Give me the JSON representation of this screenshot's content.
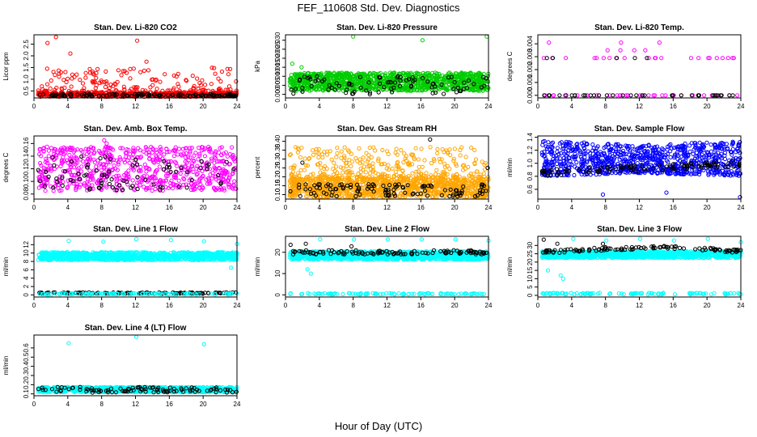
{
  "figure": {
    "title": "FEF_110608  Std. Dev. Diagnostics",
    "xlabel": "Hour of Day (UTC)"
  },
  "chart_data": [
    {
      "type": "scatter",
      "title": "Stan. Dev. Li-820 CO2",
      "ylabel": "Licor ppm",
      "xlim": [
        0,
        24
      ],
      "ylim": [
        0.2,
        2.9
      ],
      "x_ticks": [
        "0",
        "4",
        "8",
        "12",
        "16",
        "20",
        "24"
      ],
      "y_ticks": [
        "0.5",
        "1.0",
        "1.5",
        "2.0",
        "2.5"
      ],
      "y_tick_values": [
        0.5,
        1.0,
        1.5,
        2.0,
        2.5
      ],
      "series": [
        {
          "color": "#ff0000",
          "x_range": [
            0.5,
            24
          ],
          "points": 700,
          "y_base": [
            0.25,
            0.45
          ],
          "y_spread": [
            0.5,
            1.5
          ],
          "outliers": [
            [
              1.6,
              2.55
            ],
            [
              2.6,
              2.8
            ],
            [
              12.2,
              2.65
            ],
            [
              4.3,
              2.1
            ],
            [
              13.3,
              1.75
            ]
          ]
        },
        {
          "color": "#000000",
          "x_range": [
            0.5,
            24
          ],
          "points": 120,
          "y_base": [
            0.27,
            0.36
          ]
        }
      ]
    },
    {
      "type": "scatter",
      "title": "Stan. Dev. Li-820 Pressure",
      "ylabel": "kPa",
      "xlim": [
        0,
        24
      ],
      "ylim": [
        -0.002,
        0.033
      ],
      "x_ticks": [
        "0",
        "4",
        "8",
        "12",
        "16",
        "20",
        "24"
      ],
      "y_ticks": [
        "0.000",
        "0.005",
        "0.010",
        "0.015",
        "0.020",
        "0.025",
        "0.030"
      ],
      "y_tick_values": [
        0.0,
        0.005,
        0.01,
        0.015,
        0.02,
        0.025,
        0.03
      ],
      "series": [
        {
          "color": "#00cc00",
          "x_range": [
            0.5,
            24
          ],
          "points": 1100,
          "y_base": [
            0.002,
            0.012
          ],
          "outliers": [
            [
              8,
              0.032
            ],
            [
              16.2,
              0.03
            ],
            [
              23.8,
              0.032
            ],
            [
              0.8,
              0.017
            ],
            [
              1.9,
              0.015
            ]
          ]
        },
        {
          "color": "#000000",
          "x_range": [
            0.5,
            24
          ],
          "points": 90,
          "y_base": [
            0.0,
            0.01
          ]
        }
      ]
    },
    {
      "type": "scatter",
      "title": "Stan. Dev. Li-820 Temp.",
      "ylabel": "degrees C",
      "xlim": [
        0,
        24
      ],
      "ylim": [
        -0.0002,
        0.0047
      ],
      "x_ticks": [
        "0",
        "4",
        "8",
        "12",
        "16",
        "20",
        "24"
      ],
      "y_ticks": [
        "0.000",
        "0.001",
        "0.002",
        "0.003",
        "0.004"
      ],
      "y_tick_values": [
        0.0,
        0.001,
        0.002,
        0.003,
        0.004
      ],
      "series": [
        {
          "color": "#ff00ff",
          "x_range": [
            0.5,
            24
          ],
          "points": 60,
          "y_levels": [
            0.0,
            0.0029,
            0.0035,
            0.0041
          ],
          "y_level_weights": [
            0.55,
            0.3,
            0.1,
            0.05
          ]
        },
        {
          "color": "#000000",
          "x_range": [
            0.5,
            24
          ],
          "points": 40,
          "y_levels": [
            0.0,
            0.0029
          ],
          "y_level_weights": [
            0.85,
            0.15
          ]
        }
      ]
    },
    {
      "type": "scatter",
      "title": "Stan. Dev. Amb. Box Temp.",
      "ylabel": "degrees C",
      "xlim": [
        0,
        24
      ],
      "ylim": [
        0.072,
        0.172
      ],
      "x_ticks": [
        "0",
        "4",
        "8",
        "12",
        "16",
        "20",
        "24"
      ],
      "y_ticks": [
        "0.08",
        "0.10",
        "0.12",
        "0.14",
        "0.16"
      ],
      "y_tick_values": [
        0.08,
        0.1,
        0.12,
        0.14,
        0.16
      ],
      "series": [
        {
          "color": "#ff00ff",
          "x_range": [
            0.5,
            24
          ],
          "points": 700,
          "y_base": [
            0.085,
            0.155
          ],
          "outliers": [
            [
              8.3,
              0.165
            ],
            [
              8.6,
              0.16
            ]
          ]
        },
        {
          "color": "#000000",
          "x_range": [
            0.5,
            24
          ],
          "points": 80,
          "y_base": [
            0.085,
            0.14
          ]
        }
      ]
    },
    {
      "type": "scatter",
      "title": "Stan. Dev. Gas Stream RH",
      "ylabel": "percent",
      "xlim": [
        0,
        24
      ],
      "ylim": [
        0.075,
        0.43
      ],
      "x_ticks": [
        "0",
        "4",
        "8",
        "12",
        "16",
        "20",
        "24"
      ],
      "y_ticks": [
        "0.10",
        "0.15",
        "0.20",
        "0.25",
        "0.30",
        "0.35",
        "0.40"
      ],
      "y_tick_values": [
        0.1,
        0.15,
        0.2,
        0.25,
        0.3,
        0.35,
        0.4
      ],
      "series": [
        {
          "color": "#ffa500",
          "x_range": [
            0.5,
            24
          ],
          "points": 1300,
          "y_base": [
            0.085,
            0.2
          ],
          "y_spread": [
            0.2,
            0.37
          ]
        },
        {
          "color": "#000000",
          "x_range": [
            0.5,
            24
          ],
          "points": 110,
          "y_base": [
            0.09,
            0.16
          ],
          "outliers": [
            [
              17.1,
              0.41
            ],
            [
              23.9,
              0.25
            ],
            [
              2,
              0.28
            ]
          ]
        }
      ]
    },
    {
      "type": "scatter",
      "title": "Stan. Dev. Sample Flow",
      "ylabel": "ml/min",
      "xlim": [
        0,
        24
      ],
      "ylim": [
        0.45,
        1.42
      ],
      "x_ticks": [
        "0",
        "4",
        "8",
        "12",
        "16",
        "20",
        "24"
      ],
      "y_ticks": [
        "0.6",
        "0.8",
        "1.0",
        "1.2",
        "1.4"
      ],
      "y_tick_values": [
        0.6,
        0.8,
        1.0,
        1.2,
        1.4
      ],
      "series": [
        {
          "color": "#0000ff",
          "x_range": [
            0.5,
            24
          ],
          "points": 900,
          "y_band": [
            [
              0.5,
              0.8,
              1.35
            ],
            [
              12,
              0.85,
              1.28
            ],
            [
              24,
              0.8,
              1.35
            ]
          ],
          "outliers": [
            [
              23.9,
              0.48
            ],
            [
              7.7,
              0.52
            ],
            [
              15.2,
              0.55
            ]
          ]
        },
        {
          "color": "#000000",
          "x_range": [
            0.5,
            24
          ],
          "points": 100,
          "y_trend": [
            [
              0.5,
              0.85
            ],
            [
              24,
              1.0
            ]
          ],
          "jitter": 0.05
        }
      ]
    },
    {
      "type": "scatter",
      "title": "Stan. Dev. Line 1 Flow",
      "ylabel": "ml/min",
      "xlim": [
        0,
        24
      ],
      "ylim": [
        -0.5,
        14
      ],
      "x_ticks": [
        "0",
        "4",
        "8",
        "12",
        "16",
        "20",
        "24"
      ],
      "y_ticks": [
        "0",
        "2",
        "4",
        "6",
        "8",
        "10",
        "12"
      ],
      "y_tick_values": [
        0,
        2,
        4,
        6,
        8,
        10,
        12
      ],
      "series": [
        {
          "color": "#00ffff",
          "x_range": [
            0.5,
            24
          ],
          "points": 1000,
          "y_base": [
            8.3,
            10.2
          ],
          "outliers": [
            [
              4.1,
              12.9
            ],
            [
              8.2,
              12.7
            ],
            [
              12.1,
              13.3
            ],
            [
              16.2,
              13.1
            ],
            [
              20.1,
              12.8
            ],
            [
              24,
              12.2
            ],
            [
              23.3,
              6.5
            ]
          ]
        },
        {
          "color": "#000000",
          "x_range": [
            0.5,
            24
          ],
          "points": 100,
          "y_base": [
            0.3,
            0.6
          ]
        },
        {
          "color": "#00ffff",
          "x_range": [
            0.5,
            24
          ],
          "points": 100,
          "y_base": [
            0.1,
            0.4
          ]
        }
      ]
    },
    {
      "type": "scatter",
      "title": "Stan. Dev. Line 2 Flow",
      "ylabel": "ml/min",
      "xlim": [
        0,
        24
      ],
      "ylim": [
        -1,
        27.5
      ],
      "x_ticks": [
        "0",
        "4",
        "8",
        "12",
        "16",
        "20",
        "24"
      ],
      "y_ticks": [
        "0",
        "10",
        "20"
      ],
      "y_tick_values": [
        0,
        10,
        20
      ],
      "series": [
        {
          "color": "#00ffff",
          "x_range": [
            0.5,
            24
          ],
          "points": 1000,
          "y_base": [
            16.5,
            20.5
          ],
          "outliers": [
            [
              2.6,
              12
            ],
            [
              3,
              10
            ],
            [
              4.1,
              26
            ],
            [
              8.1,
              26
            ],
            [
              12.1,
              26
            ],
            [
              16.1,
              26
            ],
            [
              20.1,
              26
            ],
            [
              24,
              25.5
            ]
          ]
        },
        {
          "color": "#000000",
          "x_range": [
            0.5,
            24
          ],
          "points": 110,
          "y_base": [
            19,
            21
          ],
          "outliers": [
            [
              0.6,
              23.5
            ],
            [
              2.4,
              24
            ],
            [
              7.8,
              22.8
            ]
          ]
        },
        {
          "color": "#00ffff",
          "x_range": [
            0.5,
            24
          ],
          "points": 100,
          "y_base": [
            0.2,
            0.8
          ]
        }
      ]
    },
    {
      "type": "scatter",
      "title": "Stan. Dev. Line 3 Flow",
      "ylabel": "ml/min",
      "xlim": [
        0,
        24
      ],
      "ylim": [
        -1,
        35.5
      ],
      "x_ticks": [
        "0",
        "4",
        "8",
        "12",
        "16",
        "20",
        "24"
      ],
      "y_ticks": [
        "0",
        "5",
        "10",
        "15",
        "20",
        "25",
        "30"
      ],
      "y_tick_values": [
        0,
        5,
        10,
        15,
        20,
        25,
        30
      ],
      "series": [
        {
          "color": "#00ffff",
          "x_range": [
            0.5,
            24
          ],
          "points": 1000,
          "y_base": [
            22.5,
            26.5
          ],
          "outliers": [
            [
              1.2,
              15
            ],
            [
              2.7,
              12
            ],
            [
              3,
              10
            ],
            [
              4.2,
              34
            ],
            [
              8.1,
              33
            ],
            [
              12.1,
              34
            ],
            [
              16.1,
              33
            ],
            [
              20.1,
              34
            ],
            [
              24,
              32
            ]
          ]
        },
        {
          "color": "#000000",
          "x_range": [
            0.5,
            24
          ],
          "points": 110,
          "y_trend": [
            [
              0.5,
              26
            ],
            [
              8,
              28
            ],
            [
              16,
              29
            ],
            [
              24,
              26.5
            ]
          ],
          "jitter": 1.0,
          "outliers": [
            [
              0.7,
              33.5
            ],
            [
              2.3,
              31
            ],
            [
              1.4,
              27
            ],
            [
              7.7,
              31
            ]
          ]
        },
        {
          "color": "#00ffff",
          "x_range": [
            0.5,
            24
          ],
          "points": 100,
          "y_base": [
            0.5,
            1.5
          ]
        }
      ]
    },
    {
      "type": "scatter",
      "title": "Stan. Dev. Line 4 (LT) Flow",
      "ylabel": "ml/min",
      "xlim": [
        0,
        24
      ],
      "ylim": [
        0.08,
        0.74
      ],
      "x_ticks": [
        "0",
        "4",
        "8",
        "12",
        "16",
        "20",
        "24"
      ],
      "y_ticks": [
        "0.1",
        "0.2",
        "0.3",
        "0.4",
        "0.5",
        "0.6"
      ],
      "y_tick_values": [
        0.1,
        0.2,
        0.3,
        0.4,
        0.5,
        0.6
      ],
      "series": [
        {
          "color": "#00ffff",
          "x_range": [
            0.5,
            24
          ],
          "points": 1000,
          "y_base": [
            0.12,
            0.175
          ],
          "outliers": [
            [
              4.1,
              0.65
            ],
            [
              12.1,
              0.72
            ],
            [
              20.1,
              0.64
            ]
          ]
        },
        {
          "color": "#000000",
          "x_range": [
            0.5,
            24
          ],
          "points": 100,
          "y_base": [
            0.115,
            0.175
          ]
        }
      ]
    }
  ]
}
